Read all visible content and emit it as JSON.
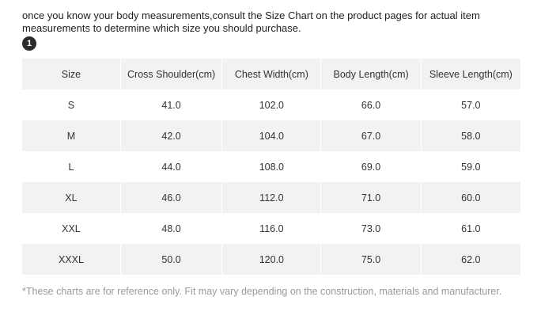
{
  "intro_text": "once you know your body measurements,consult the Size Chart on the product pages for actual item measurements to determine which size you should purchase.",
  "step_number": "1",
  "table": {
    "headers": [
      "Size",
      "Cross Shoulder(cm)",
      "Chest Width(cm)",
      "Body Length(cm)",
      "Sleeve Length(cm)"
    ],
    "rows": [
      [
        "S",
        "41.0",
        "102.0",
        "66.0",
        "57.0"
      ],
      [
        "M",
        "42.0",
        "104.0",
        "67.0",
        "58.0"
      ],
      [
        "L",
        "44.0",
        "108.0",
        "69.0",
        "59.0"
      ],
      [
        "XL",
        "46.0",
        "112.0",
        "71.0",
        "60.0"
      ],
      [
        "XXL",
        "48.0",
        "116.0",
        "73.0",
        "61.0"
      ],
      [
        "XXXL",
        "50.0",
        "120.0",
        "75.0",
        "62.0"
      ]
    ]
  },
  "footnote": "*These charts are for reference only. Fit may vary depending on the construction, materials and manufacturer.",
  "colors": {
    "stripe": "#f2f2f2",
    "badge": "#2b2b2b",
    "footnote_text": "#9a9a9a"
  }
}
